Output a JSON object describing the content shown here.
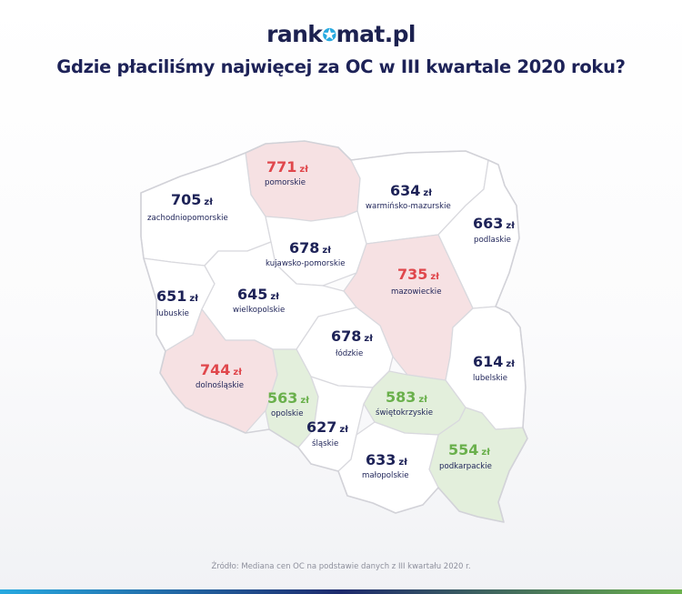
{
  "header": {
    "logo_before": "rank",
    "logo_after": "mat.pl",
    "title": "Gdzie płaciliśmy najwięcej za OC w III kwartale 2020 roku?"
  },
  "currency_unit": "zł",
  "category_colors": {
    "high": "#e0474c",
    "mid": "#1d2257",
    "low": "#6ab04c"
  },
  "regions": {
    "pomorskie": {
      "name": "pomorskie",
      "value": "771",
      "category": "high"
    },
    "warminsko_mazurskie": {
      "name": "warmińsko-mazurskie",
      "value": "634",
      "category": "mid"
    },
    "zachodniopomorskie": {
      "name": "zachodniopomorskie",
      "value": "705",
      "category": "mid"
    },
    "podlaskie": {
      "name": "podlaskie",
      "value": "663",
      "category": "mid"
    },
    "kujawsko_pomorskie": {
      "name": "kujawsko-pomorskie",
      "value": "678",
      "category": "mid"
    },
    "mazowieckie": {
      "name": "mazowieckie",
      "value": "735",
      "category": "high"
    },
    "lubuskie": {
      "name": "lubuskie",
      "value": "651",
      "category": "mid"
    },
    "wielkopolskie": {
      "name": "wielkopolskie",
      "value": "645",
      "category": "mid"
    },
    "lodzkie": {
      "name": "łódzkie",
      "value": "678",
      "category": "mid"
    },
    "lubelskie": {
      "name": "lubelskie",
      "value": "614",
      "category": "mid"
    },
    "dolnoslaskie": {
      "name": "dolnośląskie",
      "value": "744",
      "category": "high"
    },
    "opolskie": {
      "name": "opolskie",
      "value": "563",
      "category": "low"
    },
    "swietokrzyskie": {
      "name": "świętokrzyskie",
      "value": "583",
      "category": "low"
    },
    "slaskie": {
      "name": "śląskie",
      "value": "627",
      "category": "mid"
    },
    "podkarpackie": {
      "name": "podkarpackie",
      "value": "554",
      "category": "low"
    },
    "malopolskie": {
      "name": "małopolskie",
      "value": "633",
      "category": "mid"
    }
  },
  "footer": {
    "source": "Źródło: Mediana cen OC na podstawie danych z III kwartału 2020 r."
  }
}
